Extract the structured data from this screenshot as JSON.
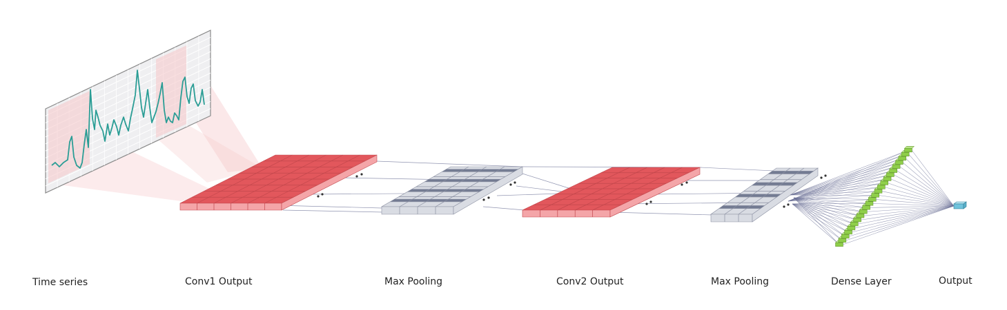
{
  "labels": {
    "time_series": "Time series",
    "conv1": "Conv1 Output",
    "pool1": "Max Pooling",
    "conv2": "Conv2 Output",
    "pool2": "Max Pooling",
    "dense": "Dense Layer",
    "output": "Output"
  },
  "colors": {
    "signal": "#2a9d95",
    "conv_top": "#e2575c",
    "conv_front": "#f4a5a8",
    "pool_dark": "#737b92",
    "pool_light": "#d9dce3",
    "dense": "#8fcf4a",
    "output": "#6fc3dc",
    "connection": "#6a6f95",
    "receptive_field": "#f6c6c8"
  }
}
